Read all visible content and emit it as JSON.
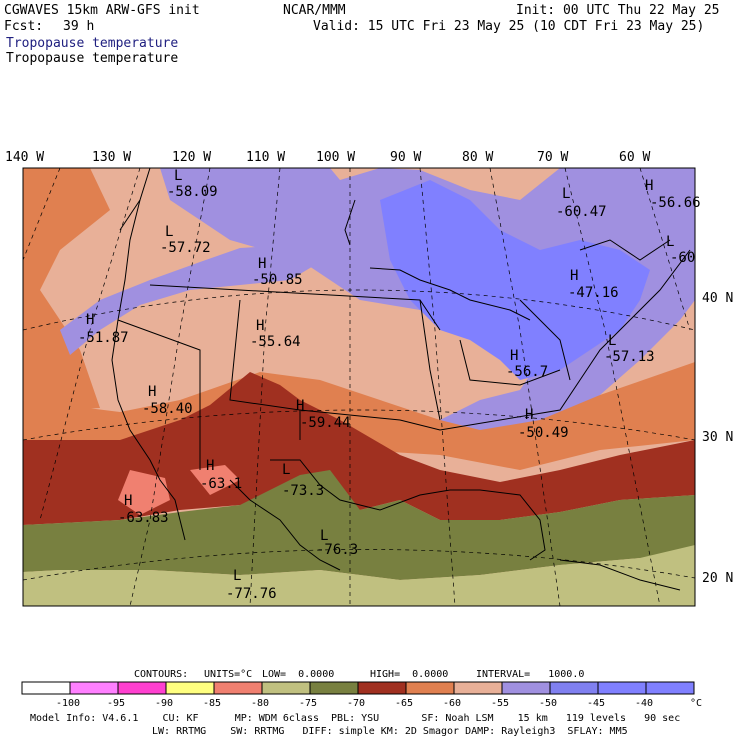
{
  "header": {
    "model": "CGWAVES 15km ARW-GFS init",
    "fcst_label": "Fcst:",
    "fcst_value": "39 h",
    "org": "NCAR/MMM",
    "init": "Init: 00 UTC Thu 22 May 25",
    "valid": "Valid: 15 UTC Fri 23 May 25 (10 CDT Fri 23 May 25)",
    "field_colored": "Tropopause temperature",
    "field_plain": "Tropopause temperature"
  },
  "colors": {
    "c_below_100": "#ffffff",
    "c_100_95": "#ff80ff",
    "c_95_90": "#ff40d0",
    "c_90_85": "#ffff80",
    "c_85_80": "#f08070",
    "c_80_75": "#c0c080",
    "c_75_70": "#788040",
    "c_70_65": "#a03020",
    "c_65_60": "#e08050",
    "c_60_55": "#e8b098",
    "c_55_50": "#a090e0",
    "c_50_45": "#8080f0",
    "c_45_40": "#8080ff",
    "header_blue": "#202080"
  },
  "map": {
    "lon_labels": [
      "140 W",
      "130 W",
      "120 W",
      "110 W",
      "100 W",
      "90 W",
      "80 W",
      "70 W",
      "60 W"
    ],
    "lat_labels": [
      "40 N",
      "30 N",
      "20 N"
    ],
    "highs": [
      {
        "marker": "L",
        "value": "-58.09"
      },
      {
        "marker": "L",
        "value": "-57.72"
      },
      {
        "marker": "H",
        "value": "-50.85"
      },
      {
        "marker": "H",
        "value": "-51.87"
      },
      {
        "marker": "H",
        "value": "-55.64"
      },
      {
        "marker": "H",
        "value": "-58.40"
      },
      {
        "marker": "H",
        "value": "-59.44"
      },
      {
        "marker": "H",
        "value": "-63.1"
      },
      {
        "marker": "L",
        "value": "-73.3"
      },
      {
        "marker": "H",
        "value": "-63.83"
      },
      {
        "marker": "L",
        "value": "-76.3"
      },
      {
        "marker": "L",
        "value": "-77.76"
      },
      {
        "marker": "H",
        "value": "-50.49"
      },
      {
        "marker": "H",
        "value": "-56.7"
      },
      {
        "marker": "H",
        "value": "-47.16"
      },
      {
        "marker": "L",
        "value": "-57.13"
      },
      {
        "marker": "L",
        "value": "-60.47"
      },
      {
        "marker": "H",
        "value": "-56.66"
      },
      {
        "marker": "L",
        "value": "-60"
      }
    ]
  },
  "contours": {
    "title": "CONTOURS:",
    "units": "UNITS=°C",
    "low": "LOW=  0.0000",
    "high": "HIGH=  0.0000",
    "interval": "INTERVAL=   1000.0"
  },
  "colorbar": {
    "ticks": [
      "-100",
      "-95",
      "-90",
      "-85",
      "-80",
      "-75",
      "-70",
      "-65",
      "-60",
      "-55",
      "-50",
      "-45",
      "-40"
    ],
    "unit": "°C"
  },
  "footer": {
    "line1": "Model Info: V4.6.1    CU: KF      MP: WDM 6class  PBL: YSU       SF: Noah LSM    15 km   119 levels   90 sec",
    "line2": "LW: RRTMG    SW: RRTMG   DIFF: simple KM: 2D Smagor DAMP: Rayleigh3  SFLAY: MM5"
  }
}
